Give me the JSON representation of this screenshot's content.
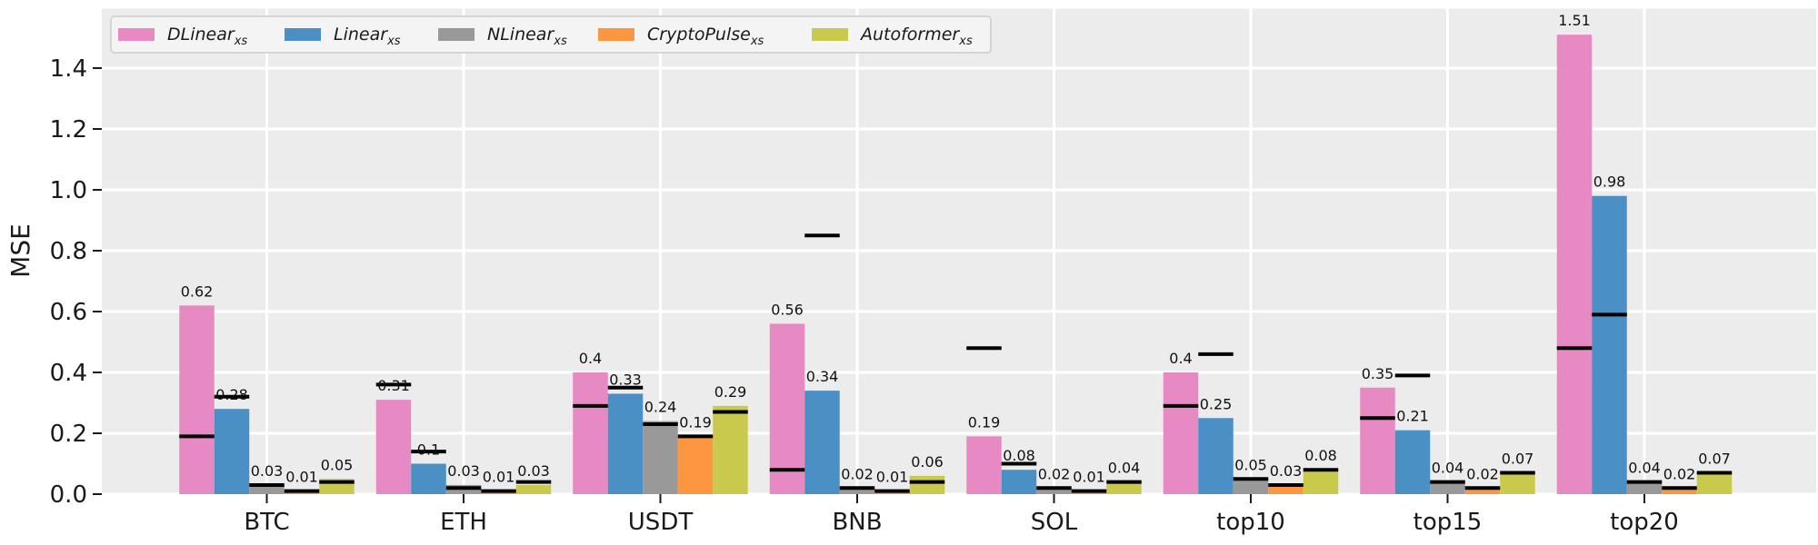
{
  "chart_data": {
    "type": "bar",
    "categories": [
      "BTC",
      "ETH",
      "USDT",
      "BNB",
      "SOL",
      "top10",
      "top15",
      "top20"
    ],
    "series": [
      {
        "name": "DLinear",
        "name_sub": "xs",
        "color": "#e78ac3",
        "values": [
          0.62,
          0.31,
          0.4,
          0.56,
          0.19,
          0.4,
          0.35,
          1.51
        ],
        "labels": [
          "0.62",
          "0.31",
          "0.4",
          "0.56",
          "0.19",
          "0.4",
          "0.35",
          "1.51"
        ],
        "markers": [
          0.19,
          0.36,
          0.29,
          0.08,
          0.48,
          0.29,
          0.25,
          0.48
        ]
      },
      {
        "name": "Linear",
        "name_sub": "xs",
        "color": "#4a90c4",
        "values": [
          0.28,
          0.1,
          0.33,
          0.34,
          0.08,
          0.25,
          0.21,
          0.98
        ],
        "labels": [
          "0.28",
          "0.1",
          "0.33",
          "0.34",
          "0.08",
          "0.25",
          "0.21",
          "0.98"
        ],
        "markers": [
          0.32,
          0.14,
          0.35,
          0.85,
          0.1,
          0.46,
          0.39,
          0.59
        ]
      },
      {
        "name": "NLinear",
        "name_sub": "xs",
        "color": "#999999",
        "values": [
          0.03,
          0.03,
          0.24,
          0.02,
          0.02,
          0.05,
          0.04,
          0.04
        ],
        "labels": [
          "0.03",
          "0.03",
          "0.24",
          "0.02",
          "0.02",
          "0.05",
          "0.04",
          "0.04"
        ],
        "markers": [
          0.03,
          0.02,
          0.23,
          0.02,
          0.02,
          0.05,
          0.04,
          0.04
        ]
      },
      {
        "name": "CryptoPulse",
        "name_sub": "xs",
        "color": "#fc9640",
        "values": [
          0.01,
          0.01,
          0.19,
          0.01,
          0.01,
          0.03,
          0.02,
          0.02
        ],
        "labels": [
          "0.01",
          "0.01",
          "0.19",
          "0.01",
          "0.01",
          "0.03",
          "0.02",
          "0.02"
        ],
        "markers": [
          0.01,
          0.01,
          0.19,
          0.01,
          0.01,
          0.03,
          0.02,
          0.02
        ]
      },
      {
        "name": "Autoformer",
        "name_sub": "xs",
        "color": "#c9c94e",
        "values": [
          0.05,
          0.03,
          0.29,
          0.06,
          0.04,
          0.08,
          0.07,
          0.07
        ],
        "labels": [
          "0.05",
          "0.03",
          "0.29",
          "0.06",
          "0.04",
          "0.08",
          "0.07",
          "0.07"
        ],
        "markers": [
          0.04,
          0.04,
          0.27,
          0.04,
          0.04,
          0.08,
          0.07,
          0.07
        ]
      }
    ],
    "ylabel": "MSE",
    "xlabel": "",
    "ylim": [
      0,
      1.6
    ],
    "yticks": [
      0.0,
      0.2,
      0.4,
      0.6,
      0.8,
      1.0,
      1.2,
      1.4
    ],
    "ytick_labels": [
      "0.0",
      "0.2",
      "0.4",
      "0.6",
      "0.8",
      "1.0",
      "1.2",
      "1.4"
    ],
    "grid": true,
    "legend_position": "top-left",
    "legend_columns": 5,
    "background_color": "#ececec",
    "grid_color": "#ffffff",
    "marker_color": "#000000"
  }
}
